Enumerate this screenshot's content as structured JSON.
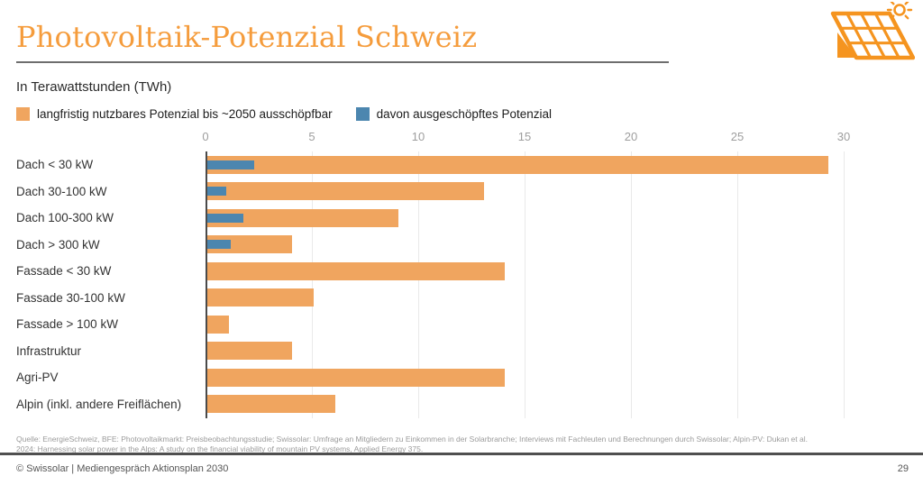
{
  "header": {
    "title": "Photovoltaik-Potenzial Schweiz"
  },
  "subtitle": "In Terawattstunden (TWh)",
  "legend": [
    {
      "label": "langfristig nutzbares Potenzial bis ~2050 ausschöpfbar",
      "color": "#F0A55F"
    },
    {
      "label": "davon ausgeschöpftes Potenzial",
      "color": "#4C86AF"
    }
  ],
  "colors": {
    "title_orange": "#F59C3C",
    "icon_orange": "#F5941F",
    "bar_orange": "#F0A55F",
    "bar_blue": "#4C86AF",
    "gridline": "#E9E9E9",
    "axis_line": "#4A4A4A"
  },
  "chart_data": {
    "type": "bar",
    "orientation": "horizontal",
    "title": "Photovoltaik-Potenzial Schweiz",
    "xlabel": "TWh",
    "ylabel": "",
    "xlim": [
      0,
      30
    ],
    "xticks": [
      0,
      5,
      10,
      15,
      20,
      25,
      30
    ],
    "grid": true,
    "legend_position": "top",
    "categories": [
      "Dach < 30 kW",
      "Dach 30-100 kW",
      "Dach 100-300 kW",
      "Dach > 300 kW",
      "Fassade < 30 kW",
      "Fassade 30-100 kW",
      "Fassade > 100 kW",
      "Infrastruktur",
      "Agri-PV",
      "Alpin (inkl. andere Freiflächen)"
    ],
    "series": [
      {
        "name": "langfristig nutzbares Potenzial bis ~2050 ausschöpfbar",
        "color": "#F0A55F",
        "values": [
          29.2,
          13,
          9,
          4,
          14,
          5,
          1,
          4,
          14,
          6
        ]
      },
      {
        "name": "davon ausgeschöpftes Potenzial",
        "color": "#4C86AF",
        "values": [
          2.2,
          0.9,
          1.7,
          1.1,
          0,
          0,
          0,
          0,
          0,
          0
        ]
      }
    ]
  },
  "source_line1": "Quelle: EnergieSchweiz, BFE: Photovoltaikmarkt: Preisbeobachtungsstudie; Swissolar: Umfrage an Mitgliedern zu Einkommen in der Solarbranche; Interviews mit Fachleuten und Berechnungen durch Swissolar; Alpin-PV: Dukan et al.",
  "source_line2": "2024: Harnessing solar power in the Alps: A study on the financial viability of mountain PV systems, Applied Energy 375.",
  "footer": {
    "left": "© Swissolar | Mediengespräch Aktionsplan 2030",
    "page": "29"
  }
}
